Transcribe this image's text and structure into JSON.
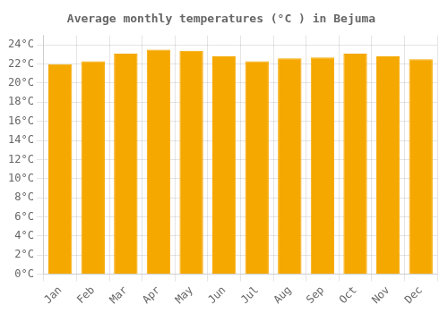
{
  "chart_data": {
    "type": "bar",
    "title": "Average monthly temperatures (°C ) in Bejuma",
    "categories": [
      "Jan",
      "Feb",
      "Mar",
      "Apr",
      "May",
      "Jun",
      "Jul",
      "Aug",
      "Sep",
      "Oct",
      "Nov",
      "Dec"
    ],
    "values": [
      22.0,
      22.3,
      23.1,
      23.5,
      23.4,
      22.8,
      22.3,
      22.6,
      22.7,
      23.1,
      22.8,
      22.5
    ],
    "color": "#F5A800",
    "ylim": [
      0,
      25
    ],
    "yticks": [
      {
        "value": 0,
        "label": "0°C"
      },
      {
        "value": 2,
        "label": "2°C"
      },
      {
        "value": 4,
        "label": "4°C"
      },
      {
        "value": 6,
        "label": "6°C"
      },
      {
        "value": 8,
        "label": "8°C"
      },
      {
        "value": 10,
        "label": "10°C"
      },
      {
        "value": 12,
        "label": "12°C"
      },
      {
        "value": 14,
        "label": "14°C"
      },
      {
        "value": 16,
        "label": "16°C"
      },
      {
        "value": 18,
        "label": "18°C"
      },
      {
        "value": 20,
        "label": "20°C"
      },
      {
        "value": 22,
        "label": "22°C"
      },
      {
        "value": 24,
        "label": "24°C"
      }
    ],
    "grid": true
  }
}
